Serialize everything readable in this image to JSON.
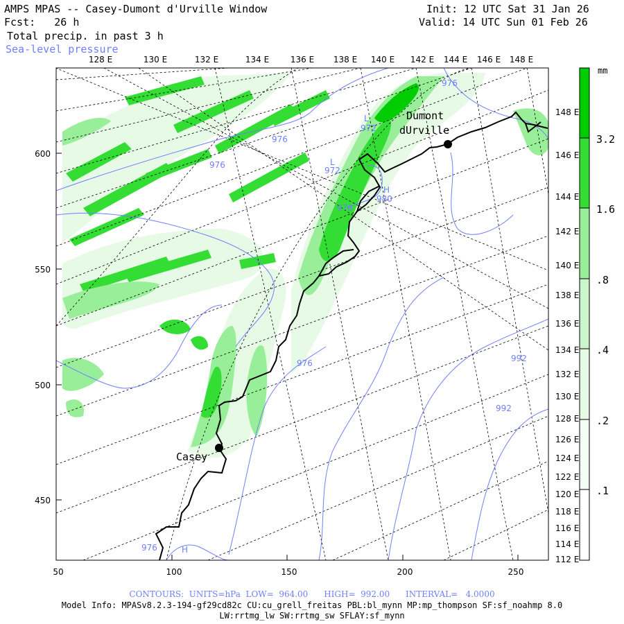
{
  "header": {
    "title": "AMPS MPAS -- Casey-Dumont d'Urville Window",
    "fcst": "Fcst:   26 h",
    "field": "Total precip. in past 3 h",
    "overlay": "Sea-level pressure",
    "init": "Init: 12 UTC Sat 31 Jan 26",
    "valid": "Valid: 14 UTC Sun 01 Feb 26"
  },
  "colors": {
    "contour": "#6f7fff",
    "coast": "#000000",
    "precip_light": "#e6fae6",
    "precip_mid": "#99ee99",
    "precip_high": "#33dd33",
    "precip_max": "#00cc00"
  },
  "lon_labels_top": [
    "128 E",
    "130 E",
    "132 E",
    "134 E",
    "136 E",
    "138 E",
    "140 E",
    "142 E",
    "144 E",
    "146 E",
    "148 E"
  ],
  "lat_labels_right": [
    "148 E",
    "146 E",
    "144 E",
    "142 E",
    "140 E",
    "138 E",
    "136 E",
    "134 E",
    "132 E",
    "130 E",
    "128 E",
    "126 E",
    "124 E",
    "122 E",
    "120 E",
    "118 E",
    "116 E",
    "114 E",
    "112 E"
  ],
  "x_ticks": [
    "50",
    "100",
    "150",
    "200",
    "250"
  ],
  "y_ticks": [
    "600",
    "550",
    "500",
    "450"
  ],
  "stations": [
    {
      "name": "Casey"
    },
    {
      "name_line1": "Dumont",
      "name_line2": "dUrville"
    }
  ],
  "pressure_labels": [
    "976",
    "976",
    "976",
    "972",
    "972",
    "976",
    "980",
    "976",
    "976",
    "992",
    "992",
    "976"
  ],
  "pressure_centers": [
    "L",
    "L",
    "H",
    "H"
  ],
  "colorbar": {
    "unit": "mm",
    "labels": [
      "3.2",
      "1.6",
      ".8",
      ".4",
      ".2",
      ".1"
    ]
  },
  "footer": {
    "contours": "CONTOURS:  UNITS=hPa  LOW=  964.00      HIGH=  992.00      INTERVAL=   4.0000",
    "model_info": "Model Info: MPASv8.2.3-194-gf29cd82c CU:cu_grell_freitas PBL:bl_mynn MP:mp_thompson SF:sf_noahmp 8.0",
    "model_info2": "LW:rrtmg_lw SW:rrtmg_sw SFLAY:sf_mynn"
  }
}
